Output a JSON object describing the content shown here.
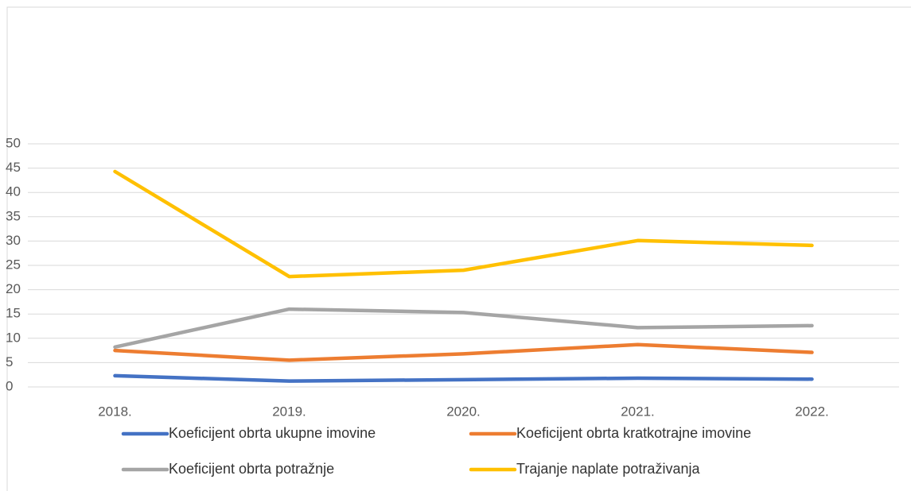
{
  "chart_data": {
    "type": "line",
    "categories": [
      "2018.",
      "2019.",
      "2020.",
      "2021.",
      "2022."
    ],
    "series": [
      {
        "name": "Koeficijent obrta ukupne imovine",
        "color": "#4472c4",
        "values": [
          2.3,
          1.2,
          1.5,
          1.8,
          1.6
        ]
      },
      {
        "name": "Koeficijent obrta kratkotrajne imovine",
        "color": "#ed7d31",
        "values": [
          7.5,
          5.5,
          6.8,
          8.7,
          7.1
        ]
      },
      {
        "name": "Koeficijent obrta potražnje",
        "color": "#a5a5a5",
        "values": [
          8.2,
          16,
          15.3,
          12.2,
          12.6
        ]
      },
      {
        "name": "Trajanje naplate potraživanja",
        "color": "#ffc000",
        "values": [
          44.3,
          22.7,
          24,
          30.1,
          29.1
        ]
      }
    ],
    "ylim": [
      0,
      50
    ],
    "yticks": [
      0,
      5,
      10,
      15,
      20,
      25,
      30,
      35,
      40,
      45,
      50
    ],
    "grid": true,
    "legend": "bottom"
  }
}
